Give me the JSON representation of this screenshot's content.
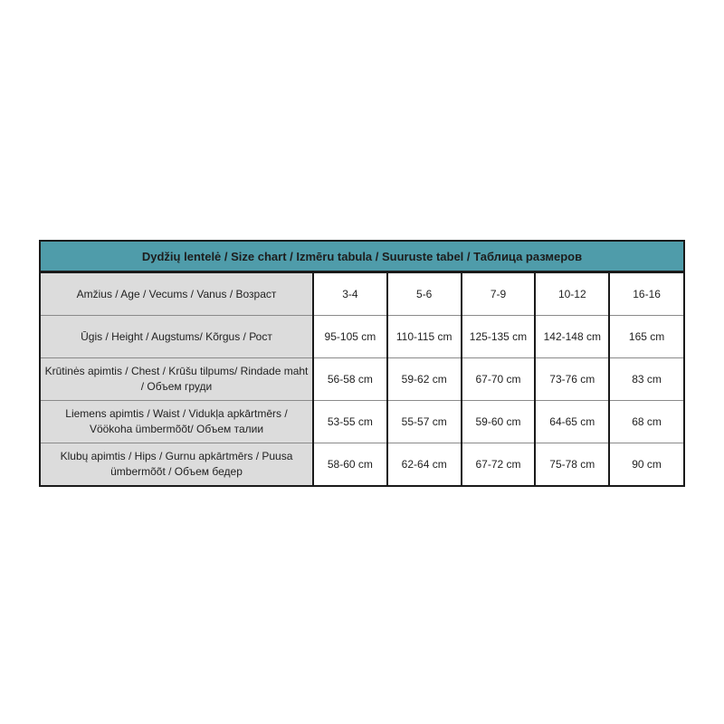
{
  "title": "Dydžių lentelė / Size chart / Izmēru tabula / Suuruste tabel / Таблица размеров",
  "colors": {
    "header": "#4f9caa",
    "label_cells": "#dcdcdc"
  },
  "rows": [
    {
      "label": "Amžius / Age / Vecums / Vanus / Возраст",
      "values": [
        "3-4",
        "5-6",
        "7-9",
        "10-12",
        "16-16"
      ]
    },
    {
      "label": "Ūgis / Height / Augstums/ Kõrgus / Рост",
      "values": [
        "95-105 cm",
        "110-115 cm",
        "125-135 cm",
        "142-148 cm",
        "165 cm"
      ]
    },
    {
      "label": "Krūtinės apimtis / Chest / Krūšu tilpums/  Rindade maht / Объем груди",
      "values": [
        "56-58 cm",
        "59-62 cm",
        "67-70 cm",
        "73-76 cm",
        "83 cm"
      ]
    },
    {
      "label": "Liemens apimtis / Waist / Vidukļa apkārtmērs / Vöökoha ümbermõõt/ Объем талии",
      "values": [
        "53-55 cm",
        "55-57 cm",
        "59-60 cm",
        "64-65 cm",
        "68 cm"
      ]
    },
    {
      "label": "Klubų apimtis / Hips / Gurnu apkārtmērs / Puusa ümbermõõt / Объем бедер",
      "values": [
        "58-60 cm",
        "62-64 cm",
        "67-72 cm",
        "75-78 cm",
        "90 cm"
      ]
    }
  ]
}
